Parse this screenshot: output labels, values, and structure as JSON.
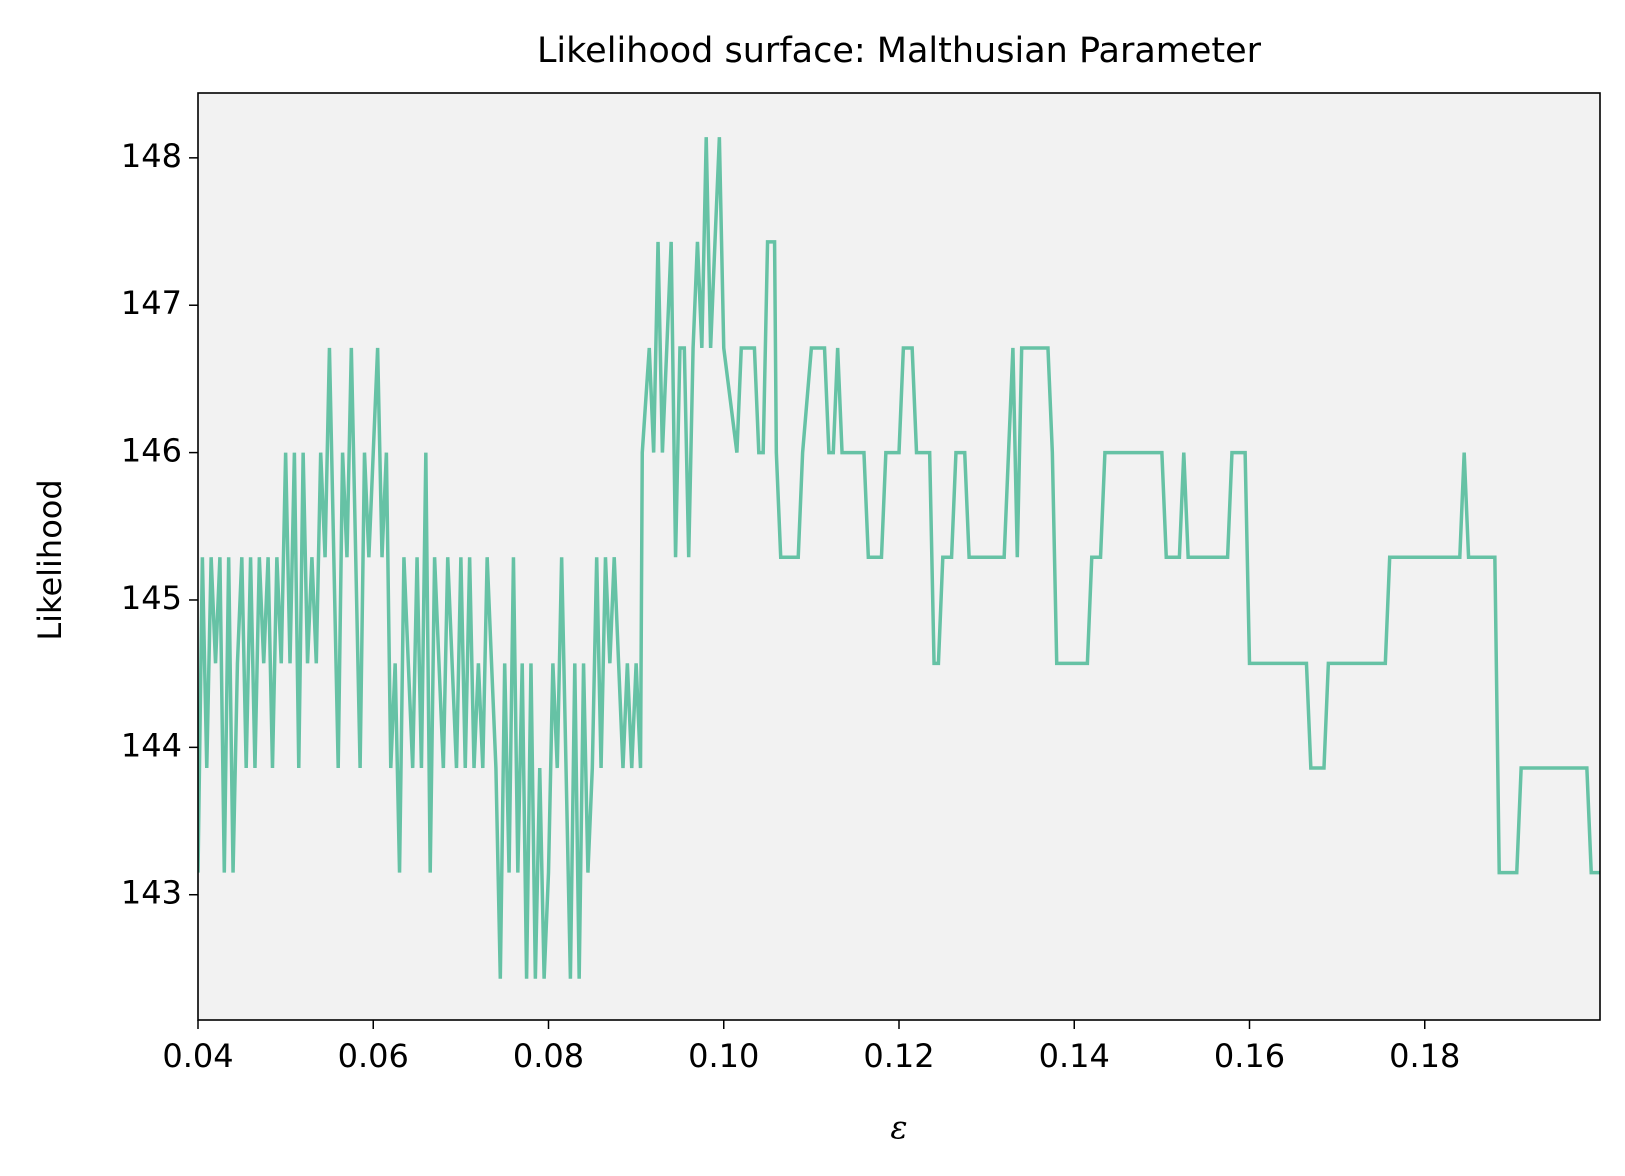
{
  "chart_data": {
    "type": "line",
    "title": "Likelihood surface: Malthusian Parameter",
    "xlabel": "ε",
    "ylabel": "Likelihood",
    "color": "#66c2a5",
    "background": "#f2f2f2",
    "xlim": [
      0.04,
      0.2
    ],
    "ylim": [
      142.15,
      148.44
    ],
    "xticks": [
      0.04,
      0.06,
      0.08,
      {
        "value": 0.1,
        "label": "0.10"
      },
      0.12,
      0.14,
      0.16,
      0.18
    ],
    "yticks": [
      143,
      144,
      145,
      146,
      147,
      148
    ],
    "x": [
      0.04,
      0.0405,
      0.041,
      0.0415,
      0.042,
      0.0425,
      0.043,
      0.0435,
      0.044,
      0.0445,
      0.045,
      0.0455,
      0.046,
      0.0465,
      0.047,
      0.0475,
      0.048,
      0.0485,
      0.049,
      0.0495,
      0.05,
      0.0505,
      0.051,
      0.0515,
      0.052,
      0.0525,
      0.053,
      0.0535,
      0.054,
      0.0545,
      0.055,
      0.0555,
      0.056,
      0.0565,
      0.057,
      0.0575,
      0.058,
      0.0585,
      0.059,
      0.0595,
      0.06,
      0.0605,
      0.061,
      0.0615,
      0.062,
      0.0625,
      0.063,
      0.0635,
      0.064,
      0.0645,
      0.065,
      0.0655,
      0.066,
      0.0665,
      0.067,
      0.0675,
      0.068,
      0.0685,
      0.069,
      0.0695,
      0.07,
      0.0705,
      0.071,
      0.0715,
      0.072,
      0.0725,
      0.073,
      0.0735,
      0.074,
      0.0745,
      0.075,
      0.0755,
      0.076,
      0.0765,
      0.077,
      0.0775,
      0.078,
      0.0785,
      0.079,
      0.0795,
      0.08,
      0.0805,
      0.081,
      0.0815,
      0.082,
      0.0825,
      0.083,
      0.0835,
      0.084,
      0.0845,
      0.085,
      0.0855,
      0.086,
      0.0865,
      0.087,
      0.0875,
      0.088,
      0.0885,
      0.089,
      0.0895,
      0.09,
      0.0905,
      0.0907,
      0.0915,
      0.092,
      0.0925,
      0.093,
      0.0935,
      0.094,
      0.0945,
      0.095,
      0.0955,
      0.096,
      0.0965,
      0.097,
      0.0975,
      0.098,
      0.0985,
      0.099,
      0.0995,
      0.1,
      0.1015,
      0.102,
      0.1035,
      0.104,
      0.1045,
      0.105,
      0.1058,
      0.106,
      0.1065,
      0.1085,
      0.109,
      0.11,
      0.1115,
      0.112,
      0.1125,
      0.113,
      0.1135,
      0.116,
      0.1165,
      0.118,
      0.1185,
      0.12,
      0.1205,
      0.1215,
      0.122,
      0.1235,
      0.124,
      0.1245,
      0.125,
      0.126,
      0.1265,
      0.1275,
      0.128,
      0.132,
      0.1325,
      0.133,
      0.1335,
      0.134,
      0.137,
      0.1375,
      0.138,
      0.1415,
      0.142,
      0.143,
      0.1435,
      0.15,
      0.1505,
      0.152,
      0.1525,
      0.153,
      0.1575,
      0.158,
      0.1595,
      0.16,
      0.1665,
      0.167,
      0.1685,
      0.169,
      0.1755,
      0.176,
      0.184,
      0.1845,
      0.185,
      0.188,
      0.1885,
      0.1905,
      0.191,
      0.1985,
      0.199,
      0.2
    ],
    "values": [
      143.15,
      145.29,
      143.86,
      145.29,
      144.57,
      145.29,
      143.15,
      145.29,
      143.15,
      144.57,
      145.29,
      143.86,
      145.29,
      143.86,
      145.29,
      144.57,
      145.29,
      143.86,
      145.29,
      144.57,
      146.0,
      144.57,
      146.0,
      143.86,
      146.0,
      144.57,
      145.29,
      144.57,
      146.0,
      145.29,
      146.71,
      145.29,
      143.86,
      146.0,
      145.29,
      146.71,
      145.29,
      143.86,
      146.0,
      145.29,
      146.0,
      146.71,
      145.29,
      146.0,
      143.86,
      144.57,
      143.15,
      145.29,
      144.57,
      143.86,
      145.29,
      143.86,
      146.0,
      143.15,
      145.29,
      144.57,
      143.86,
      145.29,
      144.57,
      143.86,
      145.29,
      143.86,
      145.29,
      143.86,
      144.57,
      143.86,
      145.29,
      144.57,
      143.86,
      142.43,
      144.57,
      143.15,
      145.29,
      143.15,
      144.57,
      142.43,
      144.57,
      142.43,
      143.86,
      142.43,
      143.15,
      144.57,
      143.86,
      145.29,
      143.86,
      142.43,
      144.57,
      142.43,
      144.57,
      143.15,
      143.86,
      145.29,
      143.86,
      145.29,
      144.57,
      145.29,
      144.57,
      143.86,
      144.57,
      143.86,
      144.57,
      143.86,
      146.0,
      146.71,
      146.0,
      147.43,
      146.0,
      146.71,
      147.43,
      145.29,
      146.71,
      146.71,
      145.29,
      146.71,
      147.43,
      146.71,
      148.14,
      146.71,
      147.43,
      148.14,
      146.71,
      146.0,
      146.71,
      146.71,
      146.0,
      146.0,
      147.43,
      147.43,
      146.0,
      145.29,
      145.29,
      146.0,
      146.71,
      146.71,
      146.0,
      146.0,
      146.71,
      146.0,
      146.0,
      145.29,
      145.29,
      146.0,
      146.0,
      146.71,
      146.71,
      146.0,
      146.0,
      144.57,
      144.57,
      145.29,
      145.29,
      146.0,
      146.0,
      145.29,
      145.29,
      146.0,
      146.71,
      145.29,
      146.71,
      146.71,
      146.0,
      144.57,
      144.57,
      145.29,
      145.29,
      146.0,
      146.0,
      145.29,
      145.29,
      146.0,
      145.29,
      145.29,
      146.0,
      146.0,
      144.57,
      144.57,
      143.86,
      143.86,
      144.57,
      144.57,
      145.29,
      145.29,
      146.0,
      145.29,
      145.29,
      143.15,
      143.15,
      143.86,
      143.86,
      143.15,
      143.15
    ]
  }
}
